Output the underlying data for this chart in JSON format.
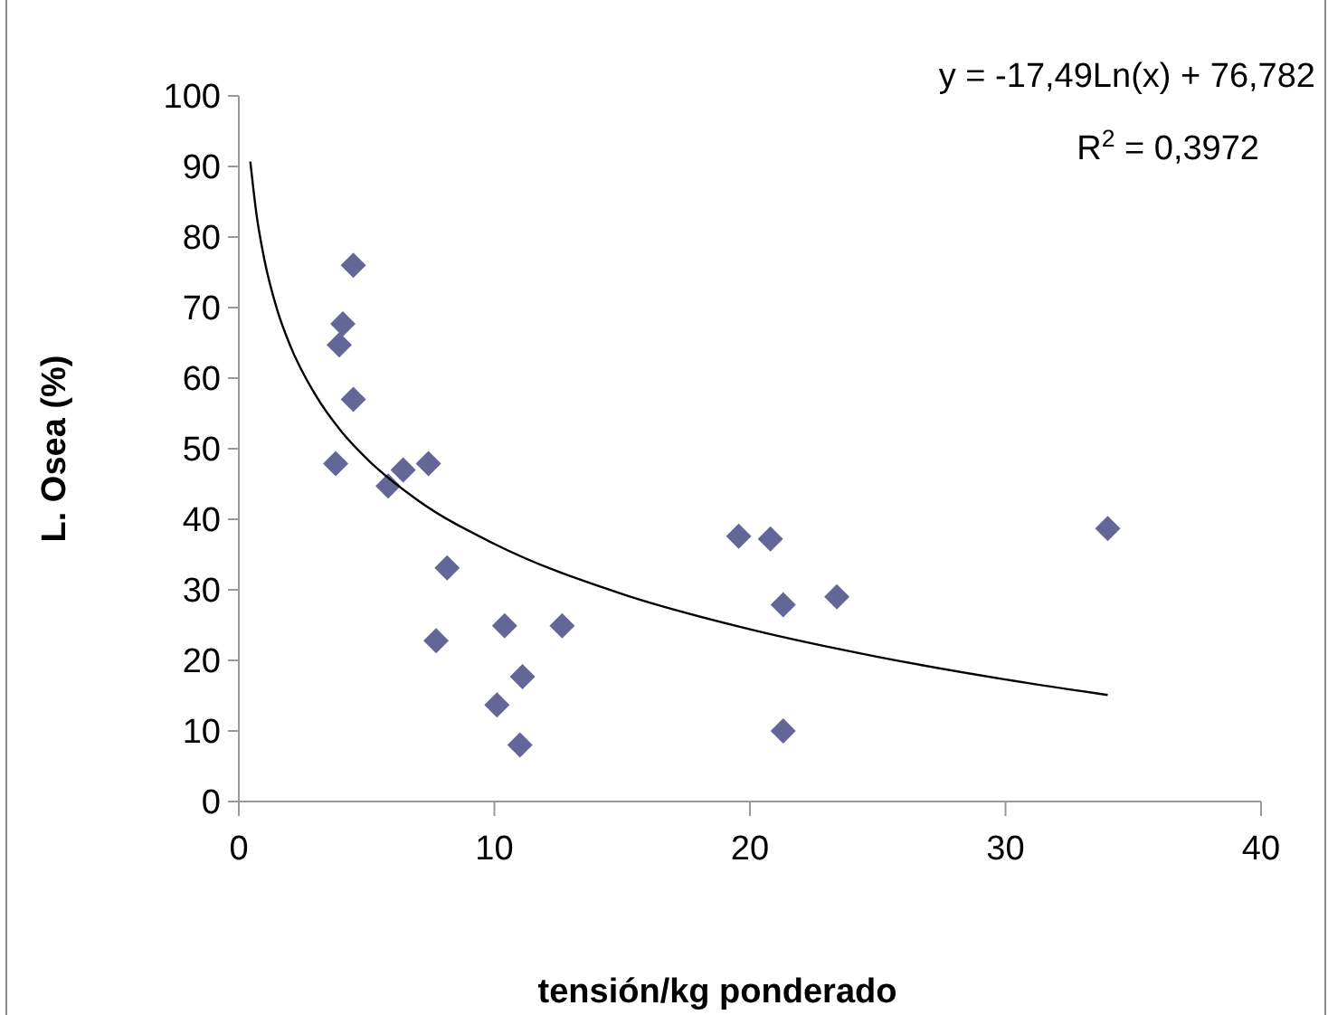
{
  "chart_data": {
    "type": "scatter",
    "xlabel": "tensión/kg ponderado",
    "ylabel": "L. Osea (%)",
    "annotations": [
      "y = -17,49Ln(x) + 76,782",
      "R$^{2}$ = 0,3972"
    ],
    "xlim": [
      0,
      40
    ],
    "xticks": [
      0,
      10,
      20,
      30,
      40
    ],
    "ylim": [
      0,
      100
    ],
    "yticks": [
      0,
      10,
      20,
      30,
      40,
      50,
      60,
      70,
      80,
      90,
      100
    ],
    "grid": false,
    "marker": "diamond",
    "series": [
      {
        "color": "#646698",
        "x": [
          4.48,
          4.07,
          3.93,
          4.48,
          3.79,
          5.84,
          6.43,
          7.42,
          8.15,
          7.72,
          10.4,
          12.65,
          11.1,
          10.1,
          11.0,
          19.56,
          20.8,
          21.3,
          23.4,
          21.3,
          34.0
        ],
        "values": [
          76.0,
          67.7,
          64.7,
          57.0,
          47.9,
          44.7,
          47.0,
          47.9,
          33.1,
          22.8,
          24.9,
          24.9,
          17.7,
          13.7,
          8.0,
          37.6,
          37.2,
          27.9,
          29.0,
          10.0,
          38.7
        ]
      },
      {
        "type": "line",
        "color": "#000000",
        "marker": "none",
        "line_style": "solid",
        "x": [
          0.45,
          0.7,
          1,
          1.5,
          2,
          3,
          4,
          5,
          7,
          10,
          15,
          20,
          25,
          30,
          34
        ],
        "values": [
          90.7,
          83.0,
          76.8,
          69.7,
          64.7,
          57.6,
          52.5,
          48.6,
          42.7,
          36.5,
          29.4,
          24.4,
          20.5,
          17.3,
          15.1
        ]
      }
    ]
  }
}
